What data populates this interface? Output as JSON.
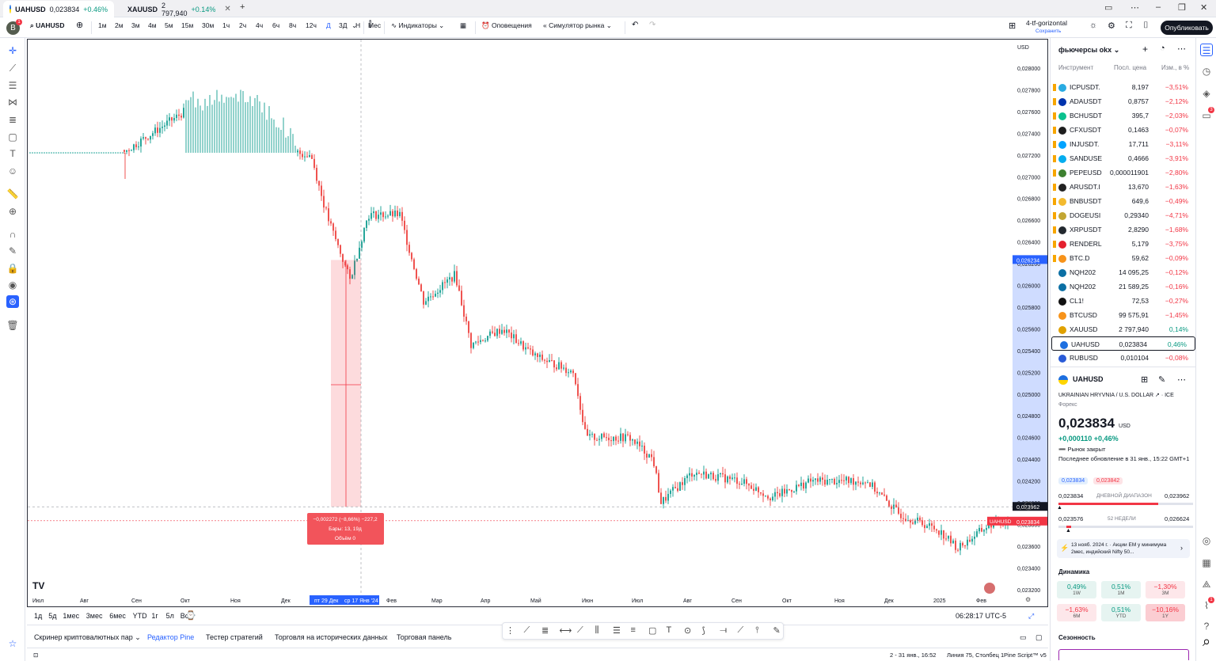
{
  "browser_tabs": [
    {
      "symbol": "UAHUSD",
      "price": "0,023834",
      "change": "+0.46%"
    },
    {
      "symbol": "XAUUSD",
      "price": "2 797,940",
      "change": "+0.14%"
    }
  ],
  "toolbar": {
    "avatar_letter": "B",
    "avatar_badge": "1",
    "symbol": "UAHUSD",
    "intervals": [
      "1м",
      "2м",
      "3м",
      "4м",
      "5м",
      "15м",
      "30м",
      "1ч",
      "2ч",
      "4ч",
      "6ч",
      "8ч",
      "12ч",
      "Д",
      "3Д",
      "Н",
      "Мес"
    ],
    "active_interval": "Д",
    "indicators": "Индикаторы",
    "alerts": "Оповещения",
    "replay": "Симулятор рынка",
    "layout_name": "4-tf-gorizontal",
    "layout_saved": "Сохранить",
    "publish": "Опубликовать"
  },
  "chart": {
    "currency": "USD",
    "price_ticks": [
      "0,028000",
      "0,027800",
      "0,027600",
      "0,027400",
      "0,027200",
      "0,027000",
      "0,026800",
      "0,026600",
      "0,026400",
      "0,026200",
      "0,026000",
      "0,025800",
      "0,025600",
      "0,025400",
      "0,025200",
      "0,025000",
      "0,024800",
      "0,024600",
      "0,024400",
      "0,024200",
      "0,024000",
      "0,023800",
      "0,023600",
      "0,023400",
      "0,023200"
    ],
    "time_ticks": [
      "Июл",
      "Авг",
      "Сен",
      "Окт",
      "Ноя",
      "Дек",
      "Фев",
      "Мар",
      "Апр",
      "Май",
      "Июн",
      "Июл",
      "Авг",
      "Сен",
      "Окт",
      "Ноя",
      "Дек",
      "2025",
      "Фев"
    ],
    "selected_range_label": "пт 29 Дек",
    "selected_range_label2": "ср 17 Янв '24",
    "price_label_top": "0,026234",
    "price_label_cross": "0,023962",
    "price_label_last": "0,023834",
    "last_symbol_tag": "UAHUSD",
    "measure_line1": "−0,002272 (−8,66%) −227,2",
    "measure_line2": "Бары: 13, 19д",
    "measure_line3": "Объём 0",
    "logo": "TV"
  },
  "range_bar": {
    "ranges": [
      "1д",
      "5д",
      "1мес",
      "3мес",
      "6мес",
      "YTD",
      "1г",
      "5л",
      "Все"
    ],
    "clock": "06:28:17 UTC-5"
  },
  "bottom_panel": {
    "tabs": [
      "Скринер криптовалютных пар",
      "Редактор Pine",
      "Тестер стратегий",
      "Торговля на исторических данных",
      "Торговая панель"
    ],
    "active_tab": "Редактор Pine"
  },
  "statusbar": {
    "range": "2 - 31 янв., 16:52",
    "position": "Линия 75, Столбец 1",
    "version": "Pine Script™ v5"
  },
  "watchlist": {
    "title": "фьючерсы okx",
    "col_symbol": "Инструмент",
    "col_last": "Посл. цена",
    "col_change": "Изм., в %",
    "rows": [
      {
        "sym": "ICPUSDT.",
        "last": "8,197",
        "chg": "−3,51%",
        "dir": "neg",
        "color": "#29abe2"
      },
      {
        "sym": "ADAUSDT",
        "last": "0,8757",
        "chg": "−2,12%",
        "dir": "neg",
        "color": "#0033ad"
      },
      {
        "sym": "BCHUSDT",
        "last": "395,7",
        "chg": "−2,03%",
        "dir": "neg",
        "color": "#0ac18e"
      },
      {
        "sym": "CFXUSDT",
        "last": "0,1463",
        "chg": "−0,07%",
        "dir": "neg",
        "color": "#1e1e1e"
      },
      {
        "sym": "INJUSDT.",
        "last": "17,711",
        "chg": "−3,11%",
        "dir": "neg",
        "color": "#00a3ff"
      },
      {
        "sym": "SANDUSE",
        "last": "0,4666",
        "chg": "−3,91%",
        "dir": "neg",
        "color": "#04adef"
      },
      {
        "sym": "PEPEUSD",
        "last": "0,000011901",
        "chg": "−2,80%",
        "dir": "neg",
        "color": "#3d8130"
      },
      {
        "sym": "ARUSDT.I",
        "last": "13,670",
        "chg": "−1,63%",
        "dir": "neg",
        "color": "#222"
      },
      {
        "sym": "BNBUSDT",
        "last": "649,6",
        "chg": "−0,49%",
        "dir": "neg",
        "color": "#f3ba2f"
      },
      {
        "sym": "DOGEUSI",
        "last": "0,29340",
        "chg": "−4,71%",
        "dir": "neg",
        "color": "#c2a633"
      },
      {
        "sym": "XRPUSDT",
        "last": "2,8290",
        "chg": "−1,68%",
        "dir": "neg",
        "color": "#23292f"
      },
      {
        "sym": "RENDERL",
        "last": "5,179",
        "chg": "−3,75%",
        "dir": "neg",
        "color": "#e4202e"
      },
      {
        "sym": "BTC.D",
        "last": "59,62",
        "chg": "−0,09%",
        "dir": "neg",
        "color": "#f7931a"
      },
      {
        "sym": "NQH202",
        "last": "14 095,25",
        "chg": "−0,12%",
        "dir": "neg",
        "color": "#0b6fa4"
      },
      {
        "sym": "NQH202",
        "last": "21 589,25",
        "chg": "−0,16%",
        "dir": "neg",
        "color": "#0b6fa4"
      },
      {
        "sym": "CL1!",
        "last": "72,53",
        "chg": "−0,27%",
        "dir": "neg",
        "color": "#111"
      },
      {
        "sym": "BTCUSD",
        "last": "99 575,91",
        "chg": "−1,45%",
        "dir": "neg",
        "color": "#f7931a"
      },
      {
        "sym": "XAUUSD",
        "last": "2 797,940",
        "chg": "0,14%",
        "dir": "pos",
        "color": "#e0a100"
      },
      {
        "sym": "UAHUSD",
        "last": "0,023834",
        "chg": "0,46%",
        "dir": "pos",
        "color": "#1d6fe0"
      },
      {
        "sym": "RUBUSD",
        "last": "0,010104",
        "chg": "−0,08%",
        "dir": "neg",
        "color": "#2a5bd7"
      }
    ]
  },
  "details": {
    "symbol": "UAHUSD",
    "name": "UKRAINIAN HRYVNIA / U.S. DOLLAR",
    "exchange": "ICE",
    "type": "Форекс",
    "price": "0,023834",
    "currency": "USD",
    "change": "+0,000110 +0,46%",
    "market_status": "Рынок закрыт",
    "last_update": "Последнее обновление в 31 янв., 15:22 GMT+1",
    "bid": "0,023834",
    "ask": "0,023842",
    "day_low": "0,023834",
    "day_range_label": "ДНЕВНОЙ ДИАПАЗОН",
    "day_high": "0,023962",
    "wk_low": "0,023576",
    "wk_range_label": "52 НЕДЕЛИ",
    "wk_high": "0,026624",
    "news": "13 нояб. 2024 г. · Акции ЕМ у минимума 2мес, индийский Nifty 50...",
    "dynamics_title": "Динамика",
    "dynamics": [
      {
        "v": "0,49%",
        "p": "1W",
        "dir": "pos"
      },
      {
        "v": "0,51%",
        "p": "1M",
        "dir": "pos"
      },
      {
        "v": "−1,30%",
        "p": "3M",
        "dir": "neg"
      },
      {
        "v": "−1,63%",
        "p": "6M",
        "dir": "neg"
      },
      {
        "v": "0,51%",
        "p": "YTD",
        "dir": "pos"
      },
      {
        "v": "−10,16%",
        "p": "1Y",
        "dir": "neg"
      }
    ],
    "seasonality": "Сезонность"
  }
}
